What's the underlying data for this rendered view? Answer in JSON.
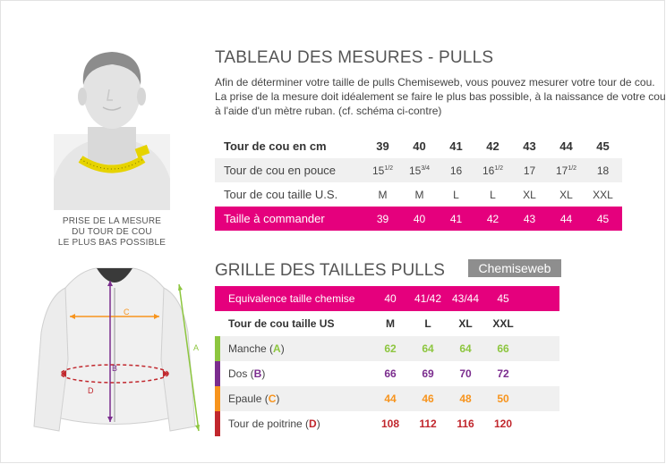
{
  "measure": {
    "title": "TABLEAU DES MESURES - PULLS",
    "intro_lines": [
      "Afin de déterminer votre taille de pulls Chemiseweb, vous pouvez mesurer votre tour de cou.",
      "La prise de la mesure doit idéalement se faire le plus bas possible, à la naissance de votre cou",
      "à l'aide d'un mètre ruban. (cf. schéma ci-contre)"
    ],
    "caption_lines": [
      "PRISE DE LA MESURE",
      "DU TOUR DE COU",
      "LE PLUS BAS POSSIBLE"
    ],
    "table": {
      "header": {
        "label": "Tour de cou en cm",
        "values": [
          "39",
          "40",
          "41",
          "42",
          "43",
          "44",
          "45"
        ]
      },
      "rows": [
        {
          "label": "Tour de cou en pouce",
          "values": [
            "15",
            "15",
            "16",
            "16",
            "17",
            "17",
            "18"
          ],
          "fractions": [
            "1/2",
            "3/4",
            "",
            "1/2",
            "",
            "1/2",
            ""
          ]
        },
        {
          "label": "Tour de cou taille U.S.",
          "values": [
            "M",
            "M",
            "L",
            "L",
            "XL",
            "XL",
            "XXL"
          ]
        }
      ],
      "order": {
        "label": "Taille à commander",
        "values": [
          "39",
          "40",
          "41",
          "42",
          "43",
          "44",
          "45"
        ]
      }
    }
  },
  "grid": {
    "title": "GRILLE DES TAILLES PULLS",
    "brand": "Chemiseweb",
    "equivalence": {
      "label": "Equivalence taille chemise",
      "values": [
        "40",
        "41/42",
        "43/44",
        "45"
      ]
    },
    "header": {
      "label": "Tour de cou taille US",
      "values": [
        "M",
        "L",
        "XL",
        "XXL"
      ]
    },
    "rows": [
      {
        "name": "Manche",
        "letter": "A",
        "color": "#8dc63f",
        "values": [
          "62",
          "64",
          "64",
          "66"
        ]
      },
      {
        "name": "Dos",
        "letter": "B",
        "color": "#7b2d8e",
        "values": [
          "66",
          "69",
          "70",
          "72"
        ]
      },
      {
        "name": "Epaule",
        "letter": "C",
        "color": "#f7941d",
        "values": [
          "44",
          "46",
          "48",
          "50"
        ]
      },
      {
        "name": "Tour de poitrine",
        "letter": "D",
        "color": "#c1272d",
        "values": [
          "108",
          "112",
          "116",
          "120"
        ]
      }
    ]
  },
  "diagram_letters": [
    "A",
    "B",
    "C",
    "D"
  ],
  "colors": {
    "pink": "#e5007d",
    "gray": "#8e8e8e"
  }
}
